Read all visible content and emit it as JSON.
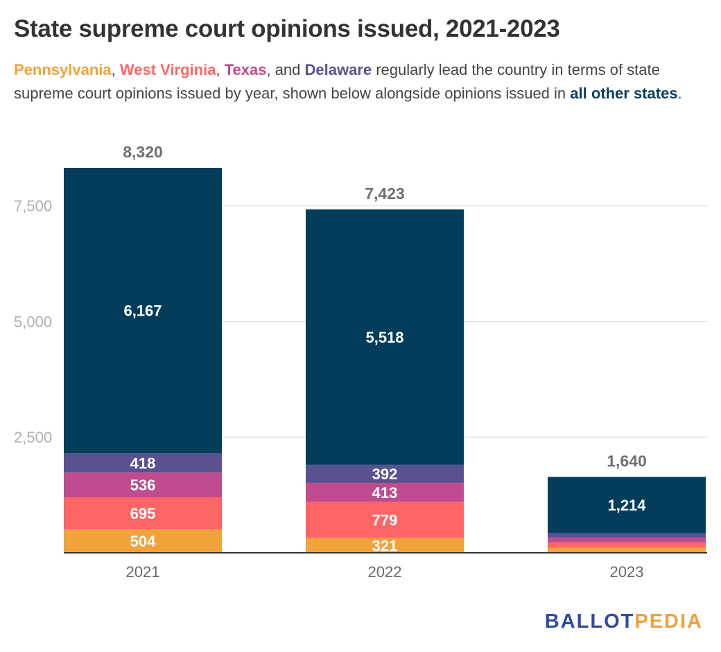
{
  "title": "State supreme court opinions issued, 2021-2023",
  "subtitle": {
    "parts": [
      {
        "text": "Pennsylvania",
        "color": "#f0a23b",
        "bold": true
      },
      {
        "text": ", ",
        "color": null,
        "bold": false
      },
      {
        "text": "West Virginia",
        "color": "#fe6565",
        "bold": true
      },
      {
        "text": ", ",
        "color": null,
        "bold": false
      },
      {
        "text": "Texas",
        "color": "#c14b8f",
        "bold": true
      },
      {
        "text": ", and ",
        "color": null,
        "bold": false
      },
      {
        "text": "Delaware",
        "color": "#5a5190",
        "bold": true
      },
      {
        "text": " regularly lead the country in terms of state supreme court opinions issued by year, shown below alongside opinions issued in ",
        "color": null,
        "bold": false
      },
      {
        "text": "all other states",
        "color": "#0d3d5c",
        "bold": true
      },
      {
        "text": ".",
        "color": null,
        "bold": false
      }
    ]
  },
  "chart_data": {
    "type": "bar",
    "stacked": true,
    "categories": [
      "2021",
      "2022",
      "2023"
    ],
    "series": [
      {
        "name": "Pennsylvania",
        "color": "#f0a23b",
        "values": [
          504,
          321,
          111
        ],
        "labels": [
          "504",
          "321",
          ""
        ]
      },
      {
        "name": "West Virginia",
        "color": "#fe6565",
        "values": [
          695,
          779,
          110
        ],
        "labels": [
          "695",
          "779",
          ""
        ]
      },
      {
        "name": "Texas",
        "color": "#c14b8f",
        "values": [
          536,
          413,
          105
        ],
        "labels": [
          "536",
          "413",
          ""
        ]
      },
      {
        "name": "Delaware",
        "color": "#5a5190",
        "values": [
          418,
          392,
          100
        ],
        "labels": [
          "418",
          "392",
          ""
        ]
      },
      {
        "name": "all other states",
        "color": "#033d5b",
        "values": [
          6167,
          5518,
          1214
        ],
        "labels": [
          "6,167",
          "5,518",
          "1,214"
        ]
      }
    ],
    "totals": [
      8320,
      7423,
      1640
    ],
    "total_labels": [
      "8,320",
      "7,423",
      "1,640"
    ],
    "y_ticks": [
      2500,
      5000,
      7500
    ],
    "y_tick_labels": [
      "2,500",
      "5,000",
      "7,500"
    ],
    "ylim": [
      0,
      8320
    ],
    "grid": true,
    "xlabel": "",
    "ylabel": ""
  },
  "brand": {
    "part1": "BALLOT",
    "part2": "PEDIA",
    "color1": "#2f4aa3",
    "color2": "#f0a23b"
  }
}
